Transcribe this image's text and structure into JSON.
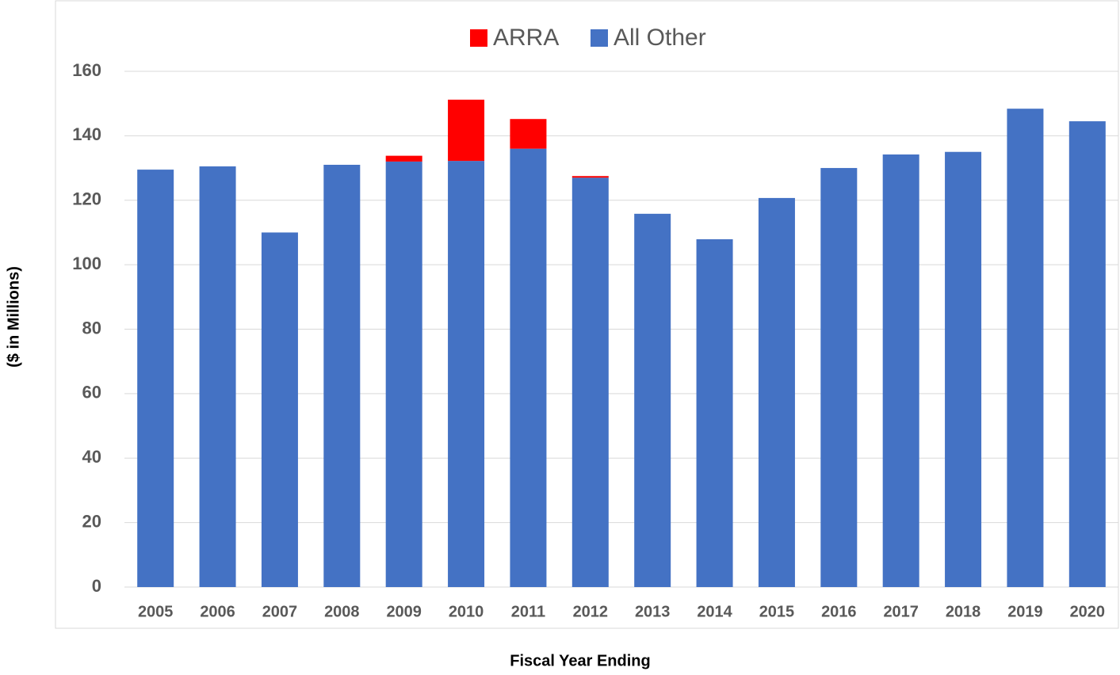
{
  "chart_data": {
    "type": "stacked_bar",
    "x_label": "Fiscal Year Ending",
    "y_label": "($ in Millions)",
    "categories": [
      "2005",
      "2006",
      "2007",
      "2008",
      "2009",
      "2010",
      "2011",
      "2012",
      "2013",
      "2014",
      "2015",
      "2016",
      "2017",
      "2018",
      "2019",
      "2020"
    ],
    "series": [
      {
        "name": "ARRA",
        "color": "#ff0000",
        "values": [
          0,
          0,
          0,
          0,
          1.8,
          19,
          9.2,
          0.5,
          0,
          0,
          0,
          0,
          0,
          0,
          0,
          0
        ]
      },
      {
        "name": "All Other",
        "color": "#4472c4",
        "values": [
          129.5,
          130.5,
          110,
          131,
          132,
          132.2,
          136,
          127,
          115.8,
          107.9,
          120.7,
          130,
          134.2,
          135,
          148.4,
          144.5
        ]
      }
    ],
    "ylim": [
      0,
      160
    ],
    "yticks": [
      0,
      20,
      40,
      60,
      80,
      100,
      120,
      140,
      160
    ],
    "grid": true,
    "legend": "top"
  }
}
